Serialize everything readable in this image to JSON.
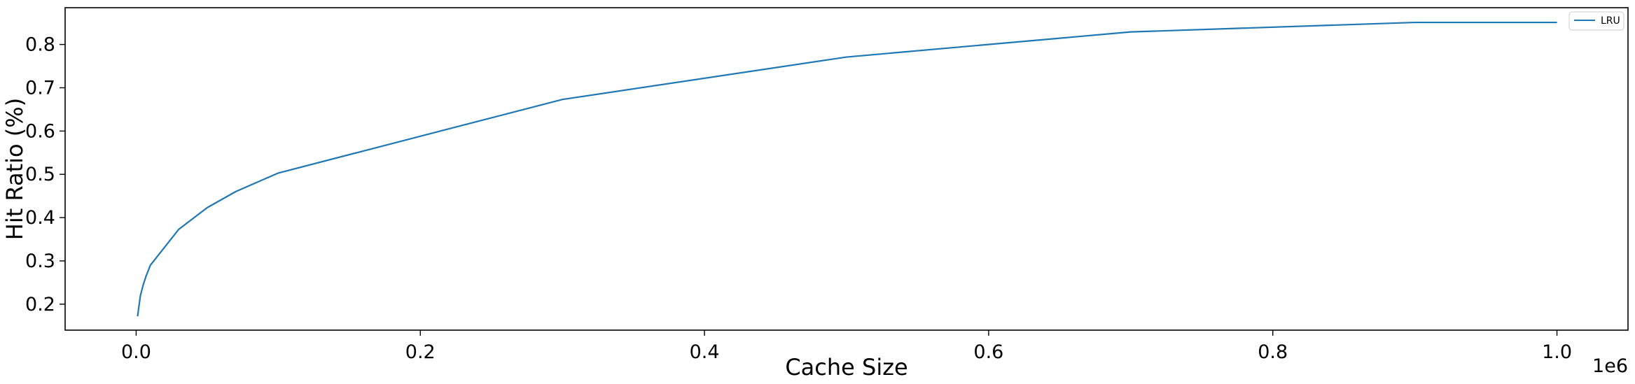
{
  "chart_data": {
    "type": "line",
    "xlabel": "Cache Size",
    "ylabel": "Hit Ratio (%)",
    "x_offset_label": "1e6",
    "xlim": [
      -0.05,
      1.05
    ],
    "ylim": [
      0.14,
      0.885
    ],
    "x_ticks": [
      0.0,
      0.2,
      0.4,
      0.6,
      0.8,
      1.0
    ],
    "x_tick_labels": [
      "0.0",
      "0.2",
      "0.4",
      "0.6",
      "0.8",
      "1.0"
    ],
    "y_ticks": [
      0.2,
      0.3,
      0.4,
      0.5,
      0.6,
      0.7,
      0.8
    ],
    "y_tick_labels": [
      "0.2",
      "0.3",
      "0.4",
      "0.5",
      "0.6",
      "0.7",
      "0.8"
    ],
    "grid": false,
    "legend_position": "top-right",
    "series": [
      {
        "name": "LRU",
        "color": "#1f77b4",
        "x": [
          0.001,
          0.003,
          0.005,
          0.007,
          0.01,
          0.03,
          0.05,
          0.07,
          0.1,
          0.3,
          0.5,
          0.7,
          0.9,
          1.0
        ],
        "y": [
          0.172,
          0.22,
          0.245,
          0.265,
          0.29,
          0.373,
          0.423,
          0.46,
          0.503,
          0.673,
          0.771,
          0.829,
          0.851,
          0.851
        ]
      }
    ]
  }
}
